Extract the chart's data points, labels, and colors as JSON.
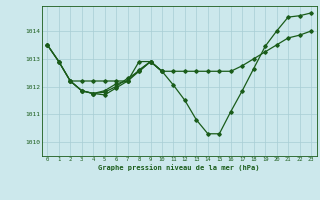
{
  "title": "Graphe pression niveau de la mer (hPa)",
  "bg_color": "#cce8ec",
  "grid_color": "#a8cdd4",
  "line_color": "#1a5c1a",
  "xlim": [
    -0.5,
    23.5
  ],
  "ylim": [
    1009.5,
    1014.9
  ],
  "yticks": [
    1010,
    1011,
    1012,
    1013,
    1014
  ],
  "xticks": [
    0,
    1,
    2,
    3,
    4,
    5,
    6,
    7,
    8,
    9,
    10,
    11,
    12,
    13,
    14,
    15,
    16,
    17,
    18,
    19,
    20,
    21,
    22,
    23
  ],
  "series": [
    {
      "x": [
        0,
        1,
        2,
        3,
        4,
        5,
        6,
        7,
        8,
        9,
        10,
        11,
        12,
        13,
        14,
        15,
        16,
        17,
        18,
        19,
        20,
        21,
        22,
        23
      ],
      "y": [
        1013.5,
        1012.9,
        1012.2,
        1011.85,
        1011.75,
        1011.7,
        1011.95,
        1012.2,
        1012.9,
        1012.9,
        1012.55,
        1012.05,
        1011.5,
        1010.8,
        1010.3,
        1010.3,
        1011.1,
        1011.85,
        1012.65,
        1013.45,
        1014.0,
        1014.5,
        1014.55,
        1014.65
      ],
      "marker": "D",
      "markersize": 1.8,
      "linewidth": 0.9
    },
    {
      "x": [
        0,
        1,
        2,
        3,
        4,
        5,
        6,
        7,
        8,
        9,
        10,
        11,
        12,
        13,
        14,
        15,
        16,
        17,
        18,
        19,
        20,
        21,
        22,
        23
      ],
      "y": [
        1013.5,
        1012.9,
        1012.2,
        1012.2,
        1012.2,
        1012.2,
        1012.2,
        1012.2,
        1012.55,
        1012.9,
        1012.55,
        1012.55,
        1012.55,
        1012.55,
        1012.55,
        1012.55,
        1012.55,
        1012.75,
        1013.0,
        1013.25,
        1013.5,
        1013.75,
        1013.85,
        1014.0
      ],
      "marker": "D",
      "markersize": 1.8,
      "linewidth": 0.9
    },
    {
      "x": [
        2,
        3,
        4,
        5,
        6,
        7,
        8,
        9,
        10
      ],
      "y": [
        1012.2,
        1011.85,
        1011.75,
        1011.8,
        1012.0,
        1012.3,
        1012.55,
        1012.9,
        1012.55
      ],
      "marker": "D",
      "markersize": 1.8,
      "linewidth": 0.9
    },
    {
      "x": [
        0,
        1,
        2,
        3,
        4,
        5,
        6,
        7,
        8,
        9,
        10
      ],
      "y": [
        1013.5,
        1012.9,
        1012.2,
        1011.85,
        1011.75,
        1011.85,
        1012.1,
        1012.2,
        1012.6,
        1012.9,
        1012.55
      ],
      "marker": "D",
      "markersize": 1.8,
      "linewidth": 0.9
    }
  ]
}
